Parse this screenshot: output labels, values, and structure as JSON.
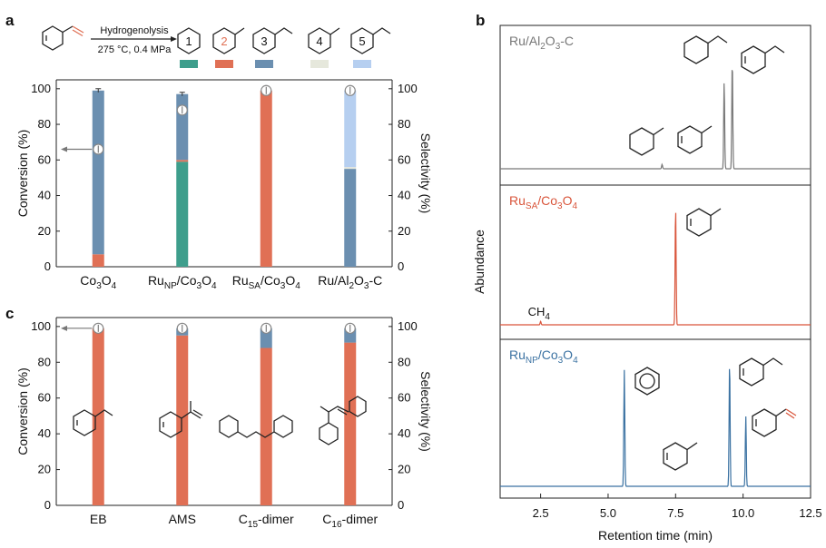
{
  "colors": {
    "benzene": "#3e9e8c",
    "toluene": "#e07055",
    "ethylbenzene": "#6b8fb0",
    "methylcyclohexane": "#e6e8dc",
    "ethylcyclohexane": "#b6cff0",
    "trace_ru_al2o3": "#777777",
    "trace_ru_sa": "#d9553b",
    "trace_ru_np": "#3b72a2"
  },
  "panel_a": {
    "label": "a",
    "reaction": {
      "arrow_top": "Hydrogenolysis",
      "arrow_bottom": "275 °C, 0.4 MPa"
    },
    "products": [
      {
        "num": "1",
        "color": "benzene"
      },
      {
        "num": "2",
        "color": "toluene"
      },
      {
        "num": "3",
        "color": "ethylbenzene"
      },
      {
        "num": "4",
        "color": "methylcyclohexane"
      },
      {
        "num": "5",
        "color": "ethylcyclohexane"
      }
    ]
  },
  "chart_data": [
    {
      "id": "a",
      "type": "bar",
      "stacked": true,
      "ylabel": "Conversion (%)",
      "y2label": "Selectivity (%)",
      "ylim": [
        0,
        105
      ],
      "yticks": [
        0,
        20,
        40,
        60,
        80,
        100
      ],
      "categories": [
        "Co3O4",
        "RuNP/Co3O4",
        "RuSA/Co3O4",
        "Ru/Al2O3-C"
      ],
      "series": [
        {
          "name": "1",
          "color": "benzene",
          "values": [
            0,
            59,
            0,
            0
          ]
        },
        {
          "name": "2",
          "color": "toluene",
          "values": [
            7,
            1,
            99,
            0
          ]
        },
        {
          "name": "3",
          "color": "ethylbenzene",
          "values": [
            92,
            37,
            0,
            55
          ]
        },
        {
          "name": "4",
          "color": "methylcyclohexane",
          "values": [
            0,
            0,
            0,
            1
          ]
        },
        {
          "name": "5",
          "color": "ethylcyclohexane",
          "values": [
            0,
            0,
            0,
            43
          ]
        }
      ],
      "conversion": [
        66,
        88,
        99,
        99
      ],
      "annotations": [
        "arrow from Co3O4 conversion marker to left axis"
      ]
    },
    {
      "id": "b",
      "type": "line",
      "xlabel": "Retention time (min)",
      "ylabel": "Abundance",
      "xlim": [
        1,
        12.5
      ],
      "xticks": [
        2.5,
        5.0,
        7.5,
        10.0,
        12.5
      ],
      "xtick_labels": [
        "2.5",
        "5.0",
        "7.5",
        "10.0",
        "12.5"
      ],
      "traces": [
        {
          "name": "Ru/Al2O3-C",
          "color": "trace_ru_al2o3",
          "peaks": [
            {
              "x": 7.0,
              "h": 0.04
            },
            {
              "x": 9.3,
              "h": 0.8
            },
            {
              "x": 9.6,
              "h": 1.0
            }
          ]
        },
        {
          "name": "RuSA/Co3O4",
          "color": "trace_ru_sa",
          "peaks": [
            {
              "x": 2.5,
              "h": 0.03
            },
            {
              "x": 7.5,
              "h": 1.0
            }
          ],
          "annotation": "CH4"
        },
        {
          "name": "RuNP/Co3O4",
          "color": "trace_ru_np",
          "peaks": [
            {
              "x": 5.6,
              "h": 0.93
            },
            {
              "x": 9.5,
              "h": 1.0
            },
            {
              "x": 10.1,
              "h": 0.56
            }
          ]
        }
      ]
    },
    {
      "id": "c",
      "type": "bar",
      "stacked": true,
      "ylabel": "Conversion (%)",
      "y2label": "Selectivity (%)",
      "ylim": [
        0,
        105
      ],
      "yticks": [
        0,
        20,
        40,
        60,
        80,
        100
      ],
      "categories": [
        "EB",
        "AMS",
        "C15-dimer",
        "C16-dimer"
      ],
      "series": [
        {
          "name": "2",
          "color": "toluene",
          "values": [
            99,
            95,
            88,
            91
          ]
        },
        {
          "name": "3",
          "color": "ethylbenzene",
          "values": [
            0,
            4,
            11,
            8
          ]
        }
      ],
      "conversion": [
        99,
        99,
        99,
        99
      ]
    }
  ]
}
